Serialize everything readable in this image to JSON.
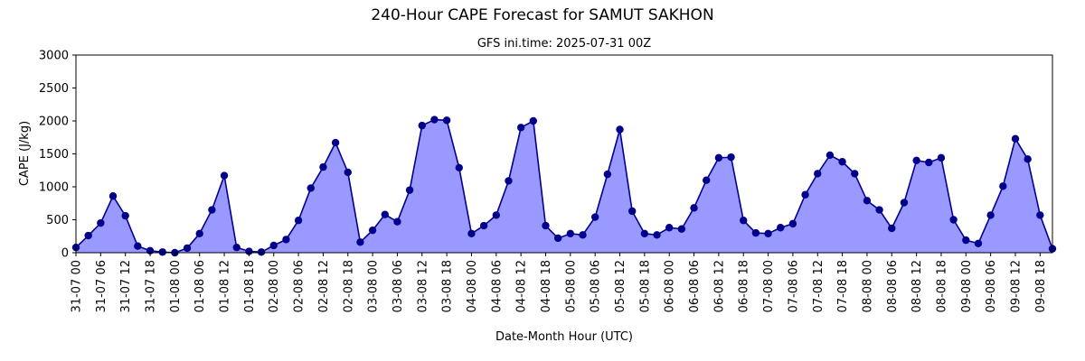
{
  "chart_data": {
    "type": "area",
    "title": "240-Hour CAPE Forecast for SAMUT SAKHON",
    "subtitle": "GFS ini.time: 2025-07-31 00Z",
    "xlabel": "Date-Month Hour (UTC)",
    "ylabel": "CAPE (J/kg)",
    "ylim": [
      0,
      3000
    ],
    "yticks": [
      0,
      500,
      1000,
      1500,
      2000,
      2500,
      3000
    ],
    "grid": false,
    "x_step_hours": 3,
    "xticks": [
      "31-07 00",
      "31-07 06",
      "31-07 12",
      "31-07 18",
      "01-08 00",
      "01-08 06",
      "01-08 12",
      "01-08 18",
      "02-08 00",
      "02-08 06",
      "02-08 12",
      "02-08 18",
      "03-08 00",
      "03-08 06",
      "03-08 12",
      "03-08 18",
      "04-08 00",
      "04-08 06",
      "04-08 12",
      "04-08 18",
      "05-08 00",
      "05-08 06",
      "05-08 12",
      "05-08 18",
      "06-08 00",
      "06-08 06",
      "06-08 12",
      "06-08 18",
      "07-08 00",
      "07-08 06",
      "07-08 12",
      "07-08 18",
      "08-08 00",
      "08-08 06",
      "08-08 12",
      "08-08 18",
      "09-08 00",
      "09-08 06",
      "09-08 12",
      "09-08 18"
    ],
    "colors": {
      "line": "#00008b",
      "fill": "#9999ff",
      "marker": "#00008b"
    },
    "values": [
      80,
      260,
      450,
      860,
      560,
      100,
      30,
      10,
      0,
      70,
      290,
      650,
      1170,
      80,
      20,
      10,
      110,
      200,
      490,
      980,
      1300,
      1670,
      1220,
      160,
      340,
      580,
      470,
      950,
      1930,
      2020,
      2010,
      1290,
      290,
      410,
      570,
      1090,
      1900,
      2000,
      410,
      220,
      290,
      270,
      540,
      1190,
      1870,
      630,
      290,
      270,
      380,
      360,
      680,
      1100,
      1440,
      1450,
      490,
      300,
      290,
      380,
      440,
      880,
      1200,
      1480,
      1380,
      1200,
      790,
      650,
      370,
      760,
      1400,
      1370,
      1440,
      500,
      190,
      140,
      570,
      1010,
      1730,
      1420,
      570,
      60
    ]
  }
}
